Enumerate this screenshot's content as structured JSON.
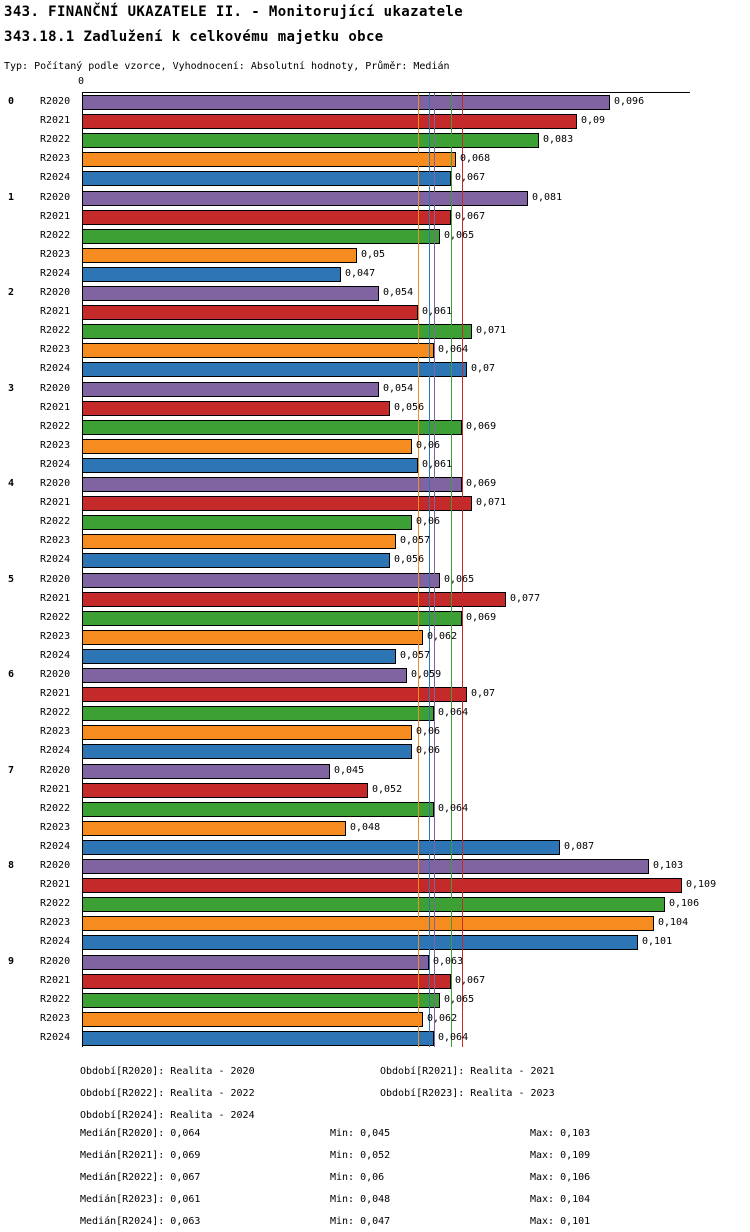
{
  "header": {
    "title": "343. FINANČNÍ UKAZATELE II. - Monitorující ukazatele",
    "subtitle": "343.18.1 Zadlužení k celkovému majetku obce",
    "meta": "Typ: Počítaný podle vzorce, Vyhodnocení: Absolutní hodnoty, Průměr: Medián"
  },
  "chart_data": {
    "type": "bar",
    "orientation": "horizontal",
    "title": "343.18.1 Zadlužení k celkovému majetku obce",
    "x_origin_label": "0",
    "xlim": [
      0,
      0.112
    ],
    "grid": false,
    "legend_position": "bottom",
    "categories": [
      "0",
      "1",
      "2",
      "3",
      "4",
      "5",
      "6",
      "7",
      "8",
      "9"
    ],
    "series": [
      {
        "name": "R2020",
        "color": "#8064A2",
        "values": [
          0.096,
          0.081,
          0.054,
          0.054,
          0.069,
          0.065,
          0.059,
          0.045,
          0.103,
          0.063
        ],
        "median": 0.064,
        "min": 0.045,
        "max": 0.103
      },
      {
        "name": "R2021",
        "color": "#C42A2A",
        "values": [
          0.09,
          0.067,
          0.061,
          0.056,
          0.071,
          0.077,
          0.07,
          0.052,
          0.109,
          0.067
        ],
        "median": 0.069,
        "min": 0.052,
        "max": 0.109
      },
      {
        "name": "R2022",
        "color": "#3DA035",
        "values": [
          0.083,
          0.065,
          0.071,
          0.069,
          0.06,
          0.069,
          0.064,
          0.064,
          0.106,
          0.065
        ],
        "median": 0.067,
        "min": 0.06,
        "max": 0.106
      },
      {
        "name": "R2023",
        "color": "#F68B1F",
        "values": [
          0.068,
          0.05,
          0.064,
          0.06,
          0.057,
          0.062,
          0.06,
          0.048,
          0.104,
          0.062
        ],
        "median": 0.061,
        "min": 0.048,
        "max": 0.104
      },
      {
        "name": "R2024",
        "color": "#2E75B6",
        "values": [
          0.067,
          0.047,
          0.07,
          0.061,
          0.056,
          0.057,
          0.06,
          0.087,
          0.101,
          0.064
        ],
        "median": 0.063,
        "min": 0.047,
        "max": 0.101
      }
    ]
  },
  "footer": {
    "periods": [
      {
        "col1": "Období[R2020]: Realita - 2020",
        "col2": "Období[R2021]: Realita - 2021"
      },
      {
        "col1": "Období[R2022]: Realita - 2022",
        "col2": "Období[R2023]: Realita - 2023"
      },
      {
        "col1": "Období[R2024]: Realita - 2024",
        "col2": ""
      }
    ],
    "stats": [
      {
        "median": "Medián[R2020]: 0,064",
        "min": "Min: 0,045",
        "max": "Max: 0,103"
      },
      {
        "median": "Medián[R2021]: 0,069",
        "min": "Min: 0,052",
        "max": "Max: 0,109"
      },
      {
        "median": "Medián[R2022]: 0,067",
        "min": "Min: 0,06",
        "max": "Max: 0,106"
      },
      {
        "median": "Medián[R2023]: 0,061",
        "min": "Min: 0,048",
        "max": "Max: 0,104"
      },
      {
        "median": "Medián[R2024]: 0,063",
        "min": "Min: 0,047",
        "max": "Max: 0,101"
      }
    ]
  }
}
